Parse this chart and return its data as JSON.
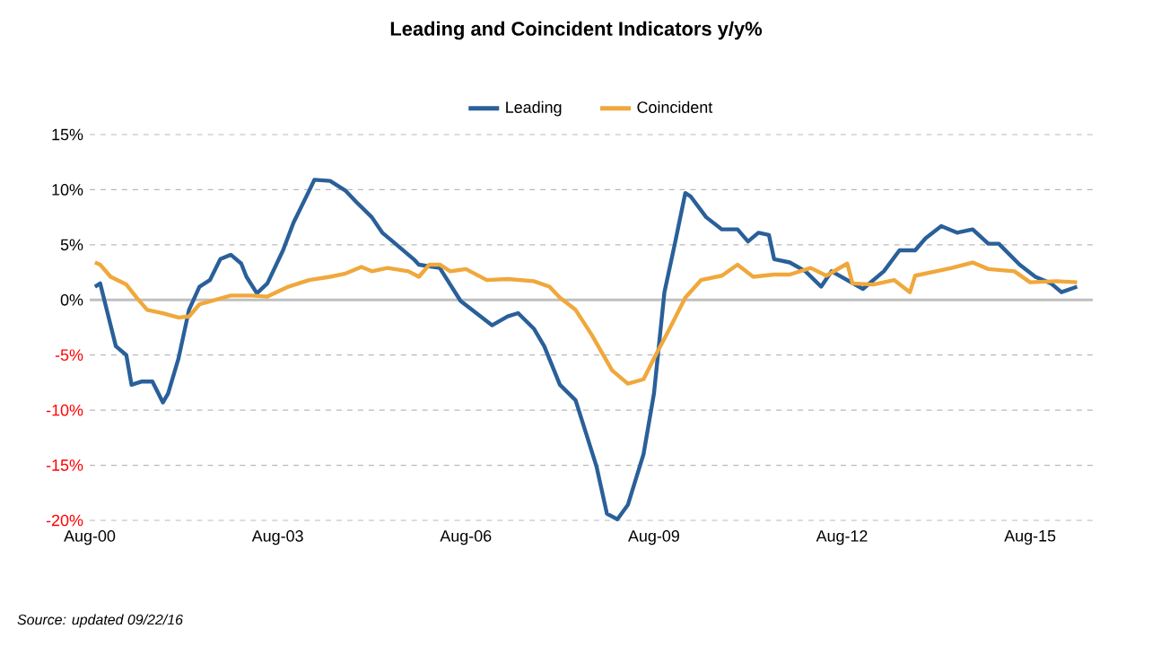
{
  "chart_data": {
    "type": "line",
    "title": "Leading and Coincident Indicators y/y%",
    "xlim": [
      "2000-08",
      "2016-08"
    ],
    "xticks": [
      {
        "value": "2000-08",
        "label": "Aug-00"
      },
      {
        "value": "2003-08",
        "label": "Aug-03"
      },
      {
        "value": "2006-08",
        "label": "Aug-06"
      },
      {
        "value": "2009-08",
        "label": "Aug-09"
      },
      {
        "value": "2012-08",
        "label": "Aug-12"
      },
      {
        "value": "2015-08",
        "label": "Aug-15"
      }
    ],
    "ylim": [
      -20,
      15
    ],
    "yticks": [
      {
        "value": -20,
        "label": "-20%"
      },
      {
        "value": -15,
        "label": "-15%"
      },
      {
        "value": -10,
        "label": "-10%"
      },
      {
        "value": -5,
        "label": "-5%"
      },
      {
        "value": 0,
        "label": "0%"
      },
      {
        "value": 5,
        "label": "5%"
      },
      {
        "value": 10,
        "label": "10%"
      },
      {
        "value": 15,
        "label": "15%"
      }
    ],
    "grid": "y",
    "legend": "top",
    "marker": "none",
    "line_style": "solid",
    "ref_lines": [
      {
        "axis": "y",
        "value": 0,
        "color": "#bfbfbf"
      }
    ],
    "annotations": [
      "Source: updated 09/22/16"
    ],
    "series": [
      {
        "name": "Leading",
        "color": "#2a6099",
        "x": [
          "2000-09",
          "2000-10",
          "2000-11",
          "2001-01",
          "2001-03",
          "2001-04",
          "2001-06",
          "2001-08",
          "2001-10",
          "2001-11",
          "2002-01",
          "2002-03",
          "2002-05",
          "2002-07",
          "2002-09",
          "2002-11",
          "2003-01",
          "2003-02",
          "2003-04",
          "2003-06",
          "2003-09",
          "2003-11",
          "2004-02",
          "2004-03",
          "2004-06",
          "2004-09",
          "2004-11",
          "2005-02",
          "2005-04",
          "2005-06",
          "2005-10",
          "2005-11",
          "2006-03",
          "2006-07",
          "2006-10",
          "2007-01",
          "2007-04",
          "2007-06",
          "2007-09",
          "2007-11",
          "2008-02",
          "2008-05",
          "2008-07",
          "2008-09",
          "2008-11",
          "2009-01",
          "2009-03",
          "2009-06",
          "2009-08",
          "2009-10",
          "2009-12",
          "2010-02",
          "2010-03",
          "2010-06",
          "2010-09",
          "2010-12",
          "2011-02",
          "2011-04",
          "2011-06",
          "2011-07",
          "2011-10",
          "2012-01",
          "2012-04",
          "2012-06",
          "2012-09",
          "2012-12",
          "2013-04",
          "2013-07",
          "2013-10",
          "2013-12",
          "2014-03",
          "2014-06",
          "2014-09",
          "2014-12",
          "2015-02",
          "2015-06",
          "2015-09",
          "2015-12",
          "2016-02",
          "2016-05"
        ],
        "values": [
          1.2,
          1.5,
          -0.4,
          -4.2,
          -5,
          -7.7,
          -7.4,
          -7.4,
          -9.3,
          -8.5,
          -5.3,
          -0.9,
          1.2,
          1.8,
          3.7,
          4.1,
          3.3,
          2.1,
          0.6,
          1.5,
          4.5,
          7.0,
          9.9,
          10.9,
          10.8,
          9.9,
          8.9,
          7.5,
          6.1,
          5.3,
          3.7,
          3.2,
          2.9,
          -0.1,
          -1.2,
          -2.3,
          -1.5,
          -1.2,
          -2.6,
          -4.2,
          -7.7,
          -9.1,
          -12.1,
          -15.1,
          -19.4,
          -19.9,
          -18.6,
          -14,
          -8.5,
          0.7,
          5.1,
          9.7,
          9.4,
          7.5,
          6.4,
          6.4,
          5.3,
          6.1,
          5.9,
          3.7,
          3.4,
          2.6,
          1.2,
          2.6,
          1.8,
          1.0,
          2.6,
          4.5,
          4.5,
          5.6,
          6.7,
          6.1,
          6.4,
          5.1,
          5.1,
          3.2,
          2.1,
          1.5,
          0.7,
          1.2
        ]
      },
      {
        "name": "Coincident",
        "color": "#f0a83c",
        "x": [
          "2000-09",
          "2000-10",
          "2000-12",
          "2001-03",
          "2001-05",
          "2001-07",
          "2001-10",
          "2002-01",
          "2002-03",
          "2002-05",
          "2002-08",
          "2002-11",
          "2003-03",
          "2003-06",
          "2003-10",
          "2004-02",
          "2004-06",
          "2004-09",
          "2004-12",
          "2005-02",
          "2005-05",
          "2005-09",
          "2005-11",
          "2006-01",
          "2006-03",
          "2006-05",
          "2006-08",
          "2006-12",
          "2007-04",
          "2007-09",
          "2007-12",
          "2008-02",
          "2008-05",
          "2008-08",
          "2008-12",
          "2009-03",
          "2009-06",
          "2009-08",
          "2009-11",
          "2010-02",
          "2010-05",
          "2010-09",
          "2010-12",
          "2011-03",
          "2011-07",
          "2011-10",
          "2012-02",
          "2012-05",
          "2012-09",
          "2012-10",
          "2013-02",
          "2013-06",
          "2013-09",
          "2013-10",
          "2014-02",
          "2014-05",
          "2014-09",
          "2014-12",
          "2015-05",
          "2015-08",
          "2016-01",
          "2016-05"
        ],
        "values": [
          3.4,
          3.2,
          2.1,
          1.4,
          0.2,
          -0.9,
          -1.2,
          -1.6,
          -1.5,
          -0.4,
          0,
          0.4,
          0.4,
          0.3,
          1.2,
          1.8,
          2.1,
          2.4,
          3.0,
          2.6,
          2.9,
          2.6,
          2.1,
          3.2,
          3.2,
          2.6,
          2.8,
          1.8,
          1.9,
          1.7,
          1.2,
          0.2,
          -0.9,
          -3.1,
          -6.4,
          -7.6,
          -7.2,
          -5.3,
          -2.6,
          0.2,
          1.8,
          2.2,
          3.2,
          2.1,
          2.3,
          2.3,
          2.9,
          2.2,
          3.3,
          1.5,
          1.4,
          1.8,
          0.7,
          2.2,
          2.6,
          2.9,
          3.4,
          2.8,
          2.6,
          1.6,
          1.7,
          1.6
        ]
      }
    ]
  }
}
